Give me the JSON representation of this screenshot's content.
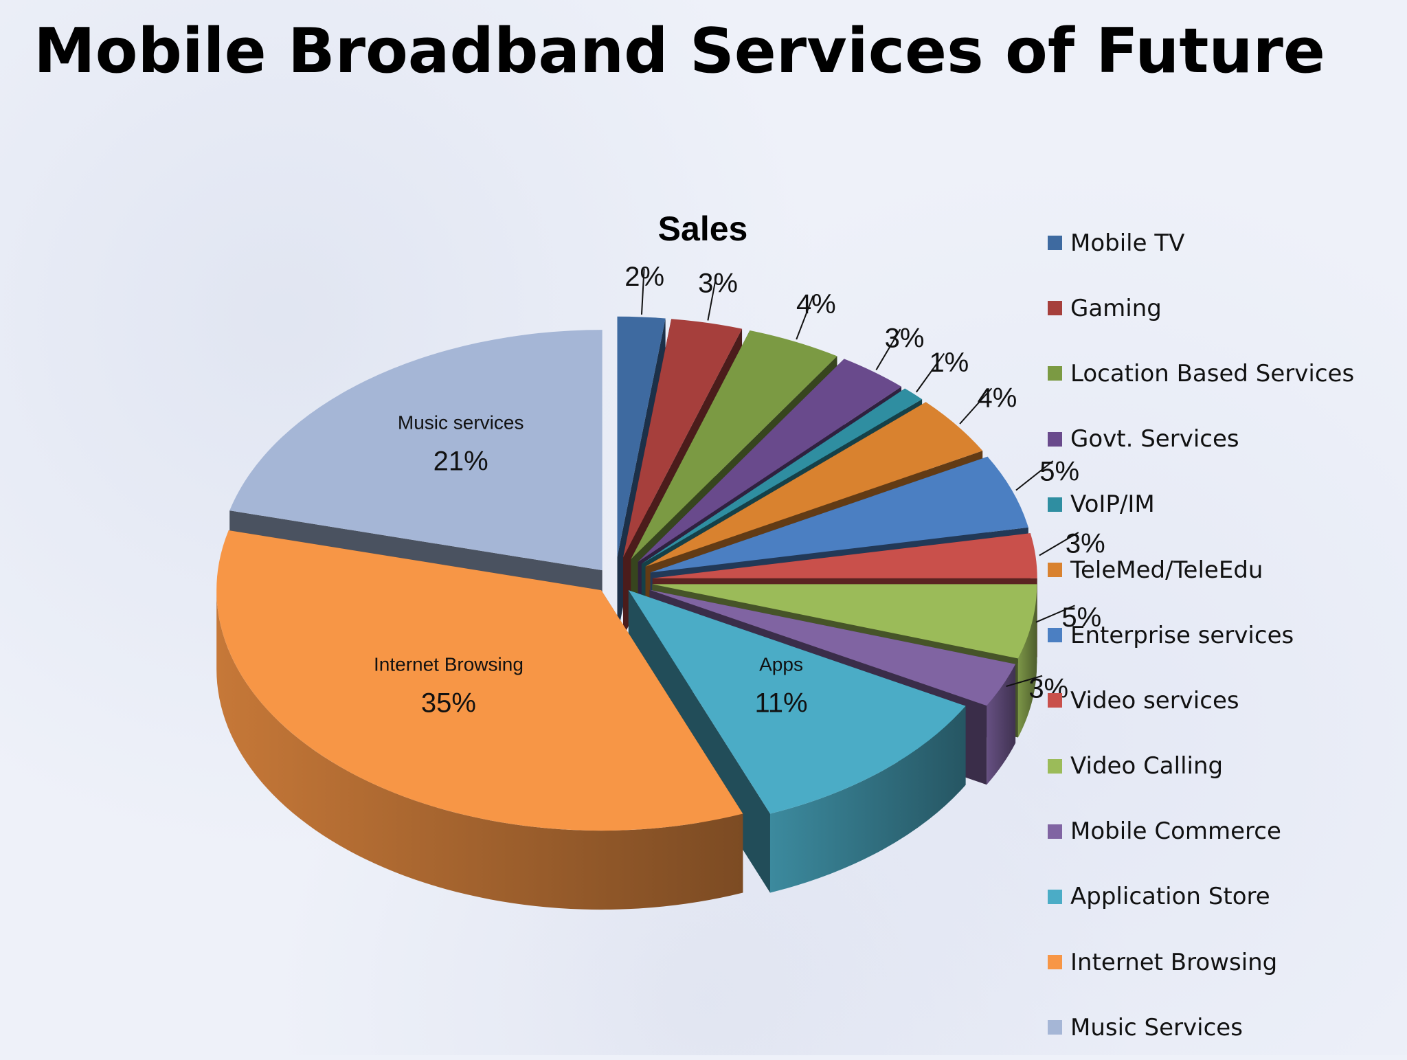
{
  "slide": {
    "title": "Mobile Broadband Services of Future"
  },
  "chart_data": {
    "type": "pie",
    "style": "3d-exploded",
    "title": "Sales",
    "legend_position": "right",
    "series": [
      {
        "values": [
          2,
          3,
          4,
          3,
          1,
          4,
          5,
          3,
          5,
          3,
          11,
          35,
          21
        ],
        "data_labels": [
          "2%",
          "3%",
          "4%",
          "3%",
          "1%",
          "4%",
          "5%",
          "3%",
          "5%",
          "3%",
          "11%",
          "35%",
          "21%"
        ]
      }
    ],
    "categories": [
      "Mobile TV",
      "Gaming",
      "Location Based Services",
      "Govt. Services",
      "VoIP/IM",
      "TeleMed/TeleEdu",
      "Enterprise services",
      "Video services",
      "Video Calling",
      "Mobile Commerce",
      "Application Store",
      "Internet Browsing",
      "Music Services"
    ],
    "colors": [
      "#3e6aa0",
      "#a63f3c",
      "#7b9a43",
      "#694a8c",
      "#2f8ea1",
      "#d9822f",
      "#4b7fc2",
      "#c9504b",
      "#9bbb59",
      "#8064a2",
      "#4bacc6",
      "#f79646",
      "#a5b6d6"
    ],
    "slice_annotations": {
      "Application Store": "Apps",
      "Internet Browsing": "Internet Browsing",
      "Music Services": "Music services"
    }
  }
}
